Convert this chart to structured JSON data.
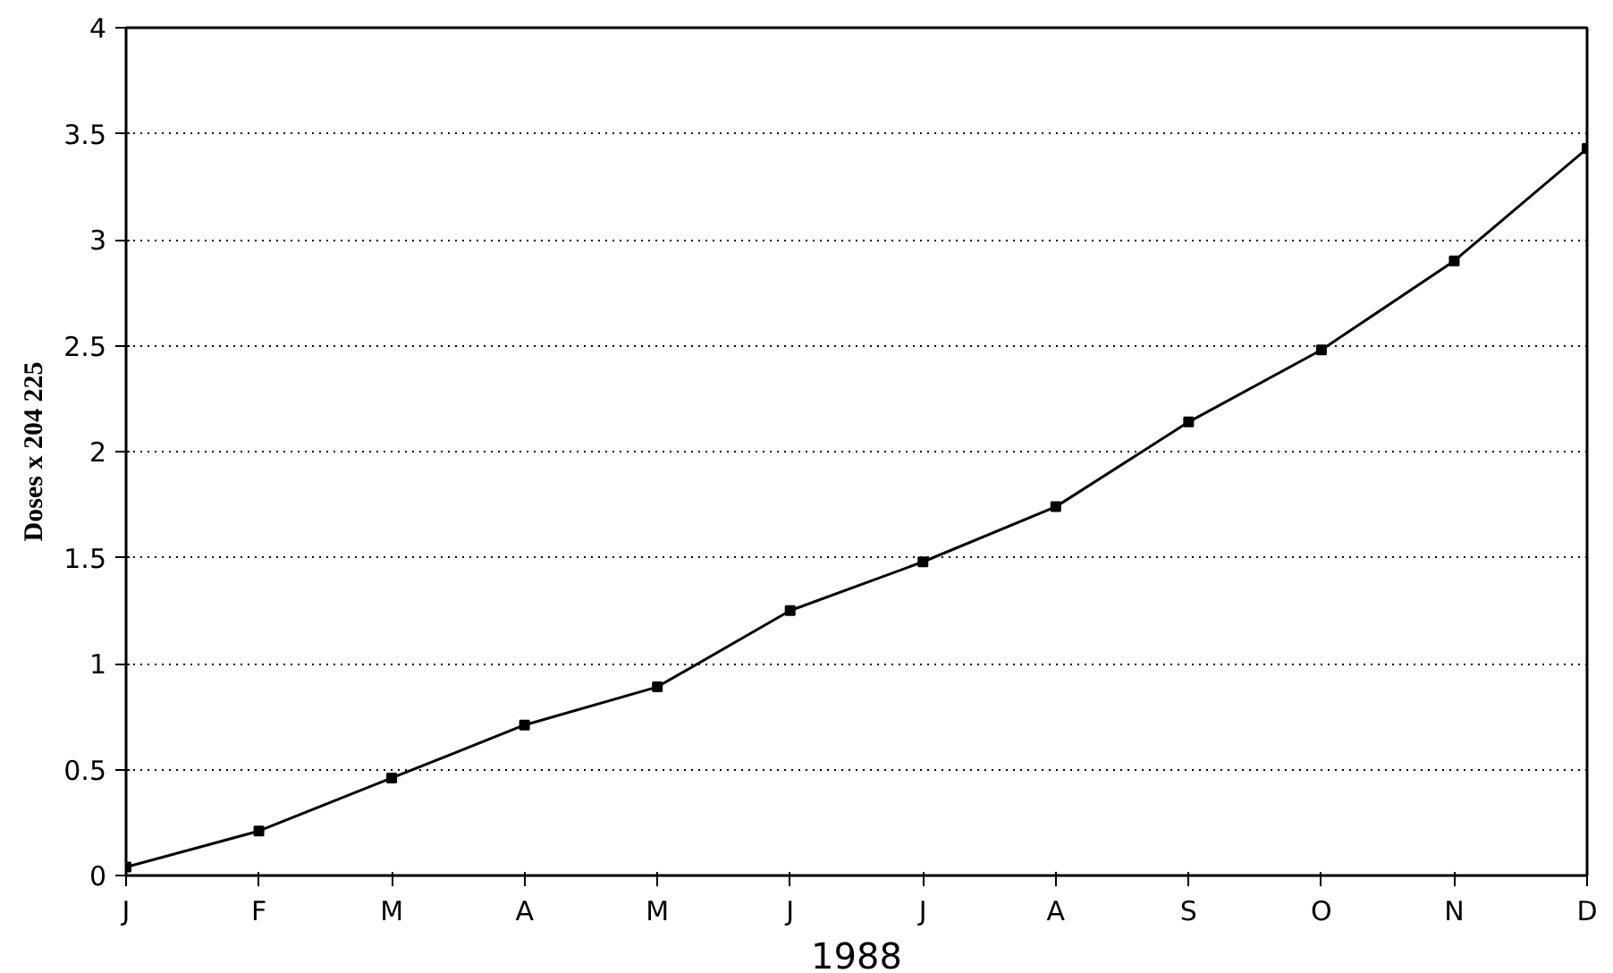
{
  "chart_data": {
    "type": "line",
    "categories": [
      "J",
      "F",
      "M",
      "A",
      "M",
      "J",
      "J",
      "A",
      "S",
      "O",
      "N",
      "D"
    ],
    "series": [
      {
        "color": "#000000",
        "values": [
          0.04,
          0.21,
          0.46,
          0.71,
          0.89,
          1.25,
          1.48,
          1.74,
          2.14,
          2.48,
          2.9,
          3.43
        ]
      }
    ],
    "xlabel": "1988",
    "ylabel": "Doses x 204 225",
    "ylim": [
      0,
      4
    ],
    "yticks": [
      0,
      0.5,
      1,
      1.5,
      2,
      2.5,
      3,
      3.5,
      4
    ],
    "grid": "y",
    "marker": "square",
    "line_style": "solid"
  }
}
